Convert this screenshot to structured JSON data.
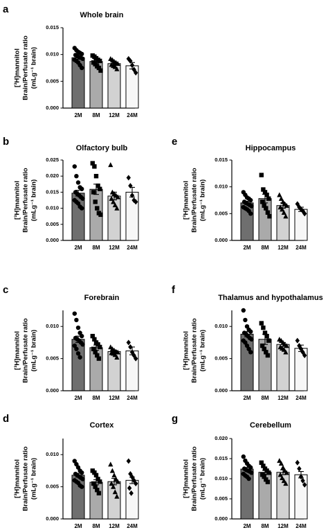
{
  "figure": {
    "group_colors": [
      "#6f6f6f",
      "#aaaaaa",
      "#d2d2d2",
      "#f7f7f7"
    ],
    "group_markers": [
      "circle",
      "square",
      "triangle",
      "diamond"
    ]
  },
  "chart_data": [
    {
      "panel": "a",
      "type": "bar",
      "title": "Whole brain",
      "ylabel_lines": [
        "[³H]mannitol",
        "Brain/Perfusate ratio",
        "(mLg⁻¹ brain)"
      ],
      "categories": [
        "2M",
        "8M",
        "12M",
        "24M"
      ],
      "yticks": [
        "0.000",
        "0.005",
        "0.010",
        "0.015"
      ],
      "ylim": [
        0,
        0.015
      ],
      "values": [
        0.0094,
        0.0087,
        0.0083,
        0.0079
      ],
      "sem": [
        0.0003,
        0.0004,
        0.0003,
        0.0006
      ],
      "points": [
        [
          0.0112,
          0.0108,
          0.0105,
          0.0103,
          0.0101,
          0.0099,
          0.0097,
          0.0095,
          0.0094,
          0.0092,
          0.009,
          0.0088,
          0.0085,
          0.008,
          0.0075
        ],
        [
          0.0098,
          0.0096,
          0.0093,
          0.009,
          0.0088,
          0.0085,
          0.0082,
          0.0078,
          0.0075,
          0.007
        ],
        [
          0.0092,
          0.009,
          0.0087,
          0.0085,
          0.0083,
          0.0081,
          0.0079,
          0.0077,
          0.0073
        ],
        [
          0.0092,
          0.0088,
          0.008,
          0.0072,
          0.0066
        ]
      ]
    },
    {
      "panel": "b",
      "type": "bar",
      "title": "Olfactory bulb",
      "ylabel_lines": [
        "[³H]mannitol",
        "Brain/Perfusate ratio",
        "(mLg⁻¹ brain)"
      ],
      "categories": [
        "2M",
        "8M",
        "12M",
        "24M"
      ],
      "yticks": [
        "0.000",
        "0.005",
        "0.010",
        "0.015",
        "0.020",
        "0.025"
      ],
      "ylim": [
        0,
        0.025
      ],
      "values": [
        0.0147,
        0.0159,
        0.0138,
        0.015
      ],
      "sem": [
        0.0009,
        0.0016,
        0.0012,
        0.0015
      ],
      "points": [
        [
          0.023,
          0.02,
          0.018,
          0.0165,
          0.016,
          0.015,
          0.0145,
          0.014,
          0.0135,
          0.013,
          0.0125,
          0.012,
          0.0115,
          0.0105,
          0.01
        ],
        [
          0.024,
          0.023,
          0.02,
          0.017,
          0.016,
          0.015,
          0.012,
          0.01,
          0.0085,
          0.008
        ],
        [
          0.0235,
          0.015,
          0.0145,
          0.014,
          0.0135,
          0.013,
          0.012,
          0.011,
          0.01
        ],
        [
          0.0195,
          0.017,
          0.014,
          0.0125,
          0.012
        ]
      ]
    },
    {
      "panel": "c",
      "type": "bar",
      "title": "Forebrain",
      "ylabel_lines": [
        "[³H]mannitol",
        "Brain/Perfusate ratio",
        "(mLg⁻¹ brain)"
      ],
      "categories": [
        "2M",
        "8M",
        "12M",
        "24M"
      ],
      "yticks": [
        "0.000",
        "0.005",
        "0.010"
      ],
      "ylim": [
        0,
        0.0125
      ],
      "values": [
        0.008,
        0.0067,
        0.0061,
        0.0062
      ],
      "sem": [
        0.0005,
        0.0004,
        0.0002,
        0.0006
      ],
      "points": [
        [
          0.012,
          0.011,
          0.0098,
          0.009,
          0.0085,
          0.0082,
          0.008,
          0.0078,
          0.0075,
          0.0072,
          0.007,
          0.0065,
          0.0058,
          0.0052
        ],
        [
          0.0085,
          0.008,
          0.0075,
          0.0072,
          0.0068,
          0.0065,
          0.006,
          0.0055,
          0.005
        ],
        [
          0.0068,
          0.0065,
          0.0063,
          0.0061,
          0.006,
          0.0059,
          0.0058,
          0.0056,
          0.0052
        ],
        [
          0.0075,
          0.0068,
          0.006,
          0.0055,
          0.005
        ]
      ]
    },
    {
      "panel": "d",
      "type": "bar",
      "title": "Cortex",
      "ylabel_lines": [
        "[³H]mannitol",
        "Brain/Perfusate ratio",
        "(mLg⁻¹ brain)"
      ],
      "categories": [
        "2M",
        "8M",
        "12M",
        "24M"
      ],
      "yticks": [
        "0.000",
        "0.005",
        "0.010"
      ],
      "ylim": [
        0,
        0.0125
      ],
      "values": [
        0.0068,
        0.0057,
        0.0058,
        0.006
      ],
      "sem": [
        0.0003,
        0.0004,
        0.0005,
        0.0005
      ],
      "points": [
        [
          0.009,
          0.0085,
          0.008,
          0.0075,
          0.0072,
          0.007,
          0.0068,
          0.0066,
          0.0064,
          0.0062,
          0.006,
          0.0058,
          0.0056,
          0.0052,
          0.005
        ],
        [
          0.0075,
          0.0072,
          0.0068,
          0.0062,
          0.0058,
          0.0055,
          0.005,
          0.0045,
          0.004
        ],
        [
          0.0085,
          0.0075,
          0.0068,
          0.0062,
          0.0058,
          0.0055,
          0.005,
          0.0042,
          0.0035
        ],
        [
          0.009,
          0.007,
          0.0065,
          0.006,
          0.0055,
          0.0048,
          0.004
        ]
      ]
    },
    {
      "panel": "e",
      "type": "bar",
      "title": "Hippocampus",
      "ylabel_lines": [
        "[³H]mannitol",
        "Brain/Perfusate ratio",
        "(mLg⁻¹ brain)"
      ],
      "categories": [
        "2M",
        "8M",
        "12M",
        "24M"
      ],
      "yticks": [
        "0.000",
        "0.005",
        "0.010",
        "0.015"
      ],
      "ylim": [
        0,
        0.015
      ],
      "values": [
        0.007,
        0.0078,
        0.0065,
        0.0058
      ],
      "sem": [
        0.0003,
        0.0008,
        0.0005,
        0.0004
      ],
      "points": [
        [
          0.009,
          0.0085,
          0.008,
          0.0078,
          0.0075,
          0.0072,
          0.007,
          0.0068,
          0.0066,
          0.0064,
          0.0062,
          0.006,
          0.0058,
          0.0055,
          0.005
        ],
        [
          0.0122,
          0.0095,
          0.009,
          0.0085,
          0.0078,
          0.0072,
          0.0065,
          0.006,
          0.0052,
          0.0045
        ],
        [
          0.0085,
          0.0078,
          0.0072,
          0.0068,
          0.0065,
          0.0062,
          0.0058,
          0.0052,
          0.0045
        ],
        [
          0.0068,
          0.0062,
          0.0058,
          0.0055,
          0.005
        ]
      ]
    },
    {
      "panel": "f",
      "type": "bar",
      "title": "Thalamus and hypothalamus",
      "ylabel_lines": [
        "[³H]mannitol",
        "Brain/Perfusate ratio",
        "(mLg⁻¹ brain)"
      ],
      "categories": [
        "2M",
        "8M",
        "12M",
        "24M"
      ],
      "yticks": [
        "0.000",
        "0.005",
        "0.010"
      ],
      "ylim": [
        0,
        0.0125
      ],
      "values": [
        0.0088,
        0.008,
        0.0072,
        0.0066
      ],
      "sem": [
        0.0004,
        0.0008,
        0.0003,
        0.0005
      ],
      "points": [
        [
          0.0125,
          0.011,
          0.01,
          0.0095,
          0.0092,
          0.009,
          0.0088,
          0.0085,
          0.0082,
          0.008,
          0.0078,
          0.0075,
          0.007,
          0.0065,
          0.006
        ],
        [
          0.0105,
          0.0098,
          0.009,
          0.0085,
          0.0078,
          0.007,
          0.0065,
          0.006,
          0.0055
        ],
        [
          0.008,
          0.0078,
          0.0075,
          0.0072,
          0.007,
          0.0068,
          0.0066,
          0.0064,
          0.006
        ],
        [
          0.0078,
          0.007,
          0.0065,
          0.006,
          0.0055
        ]
      ]
    },
    {
      "panel": "g",
      "type": "bar",
      "title": "Cerebellum",
      "ylabel_lines": [
        "[³H]mannitol",
        "Brain/Perfusate ratio",
        "(mLg⁻¹ brain)"
      ],
      "categories": [
        "2M",
        "8M",
        "12M",
        "24M"
      ],
      "yticks": [
        "0.000",
        "0.005",
        "0.010",
        "0.015",
        "0.020"
      ],
      "ylim": [
        0,
        0.02
      ],
      "values": [
        0.0124,
        0.0116,
        0.0116,
        0.011
      ],
      "sem": [
        0.0004,
        0.0005,
        0.0006,
        0.0008
      ],
      "points": [
        [
          0.0155,
          0.0145,
          0.0138,
          0.0132,
          0.0128,
          0.0125,
          0.0122,
          0.012,
          0.0118,
          0.0115,
          0.0112,
          0.0108,
          0.0105,
          0.01
        ],
        [
          0.014,
          0.0132,
          0.0125,
          0.012,
          0.0115,
          0.011,
          0.0105,
          0.0098,
          0.0092
        ],
        [
          0.0145,
          0.0138,
          0.0128,
          0.012,
          0.0115,
          0.011,
          0.0102,
          0.0095,
          0.0088
        ],
        [
          0.014,
          0.0125,
          0.0105,
          0.0095,
          0.0085
        ]
      ]
    }
  ]
}
